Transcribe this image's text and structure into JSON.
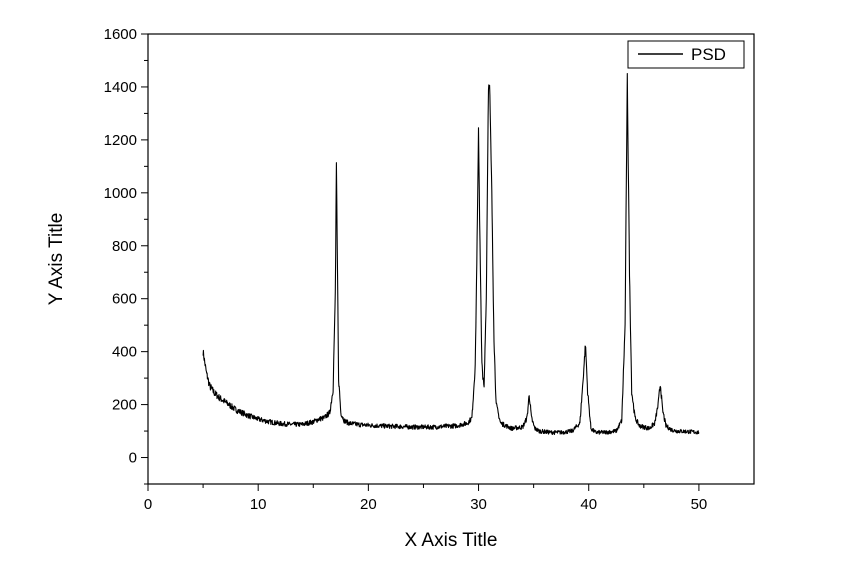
{
  "chart_data": {
    "type": "line",
    "title": "",
    "xlabel": "X Axis Title",
    "ylabel": "Y Axis Title",
    "xlim": [
      0,
      55
    ],
    "ylim": [
      -100,
      1600
    ],
    "xticks": [
      0,
      10,
      20,
      30,
      40,
      50
    ],
    "yticks": [
      0,
      200,
      400,
      600,
      800,
      1000,
      1200,
      1400,
      1600
    ],
    "grid": false,
    "legend_position": "top-right",
    "line_color": "#000000",
    "series": [
      {
        "name": "PSD",
        "x": [
          5.0,
          5.3,
          5.6,
          6.0,
          6.5,
          7.0,
          7.5,
          8.0,
          9.0,
          10.0,
          11.0,
          12.0,
          13.0,
          14.0,
          15.0,
          15.5,
          16.0,
          16.5,
          16.8,
          17.0,
          17.1,
          17.2,
          17.3,
          17.5,
          17.8,
          18.2,
          19.0,
          20.0,
          21.0,
          22.0,
          23.0,
          24.0,
          25.0,
          26.0,
          27.0,
          28.0,
          29.0,
          29.4,
          29.7,
          29.9,
          30.0,
          30.1,
          30.3,
          30.5,
          30.7,
          30.9,
          31.0,
          31.2,
          31.4,
          31.6,
          32.0,
          33.0,
          34.0,
          34.4,
          34.6,
          34.8,
          35.1,
          35.5,
          36.5,
          37.5,
          38.5,
          39.2,
          39.5,
          39.7,
          39.9,
          40.2,
          40.6,
          41.5,
          42.5,
          43.0,
          43.3,
          43.5,
          43.7,
          43.9,
          44.2,
          44.6,
          45.5,
          46.0,
          46.3,
          46.5,
          46.7,
          47.0,
          47.5,
          48.0,
          49.0,
          50.0
        ],
        "y": [
          400,
          320,
          270,
          245,
          225,
          210,
          195,
          180,
          160,
          145,
          135,
          128,
          125,
          125,
          135,
          145,
          150,
          170,
          260,
          620,
          1100,
          700,
          300,
          170,
          140,
          130,
          125,
          122,
          120,
          118,
          117,
          115,
          115,
          115,
          118,
          120,
          130,
          150,
          350,
          900,
          1240,
          900,
          350,
          260,
          600,
          1400,
          1420,
          1000,
          450,
          200,
          130,
          110,
          115,
          150,
          240,
          150,
          110,
          100,
          95,
          95,
          100,
          130,
          300,
          430,
          250,
          110,
          95,
          95,
          100,
          140,
          500,
          1440,
          700,
          250,
          150,
          120,
          110,
          130,
          200,
          280,
          180,
          120,
          105,
          100,
          98,
          95
        ]
      }
    ]
  }
}
